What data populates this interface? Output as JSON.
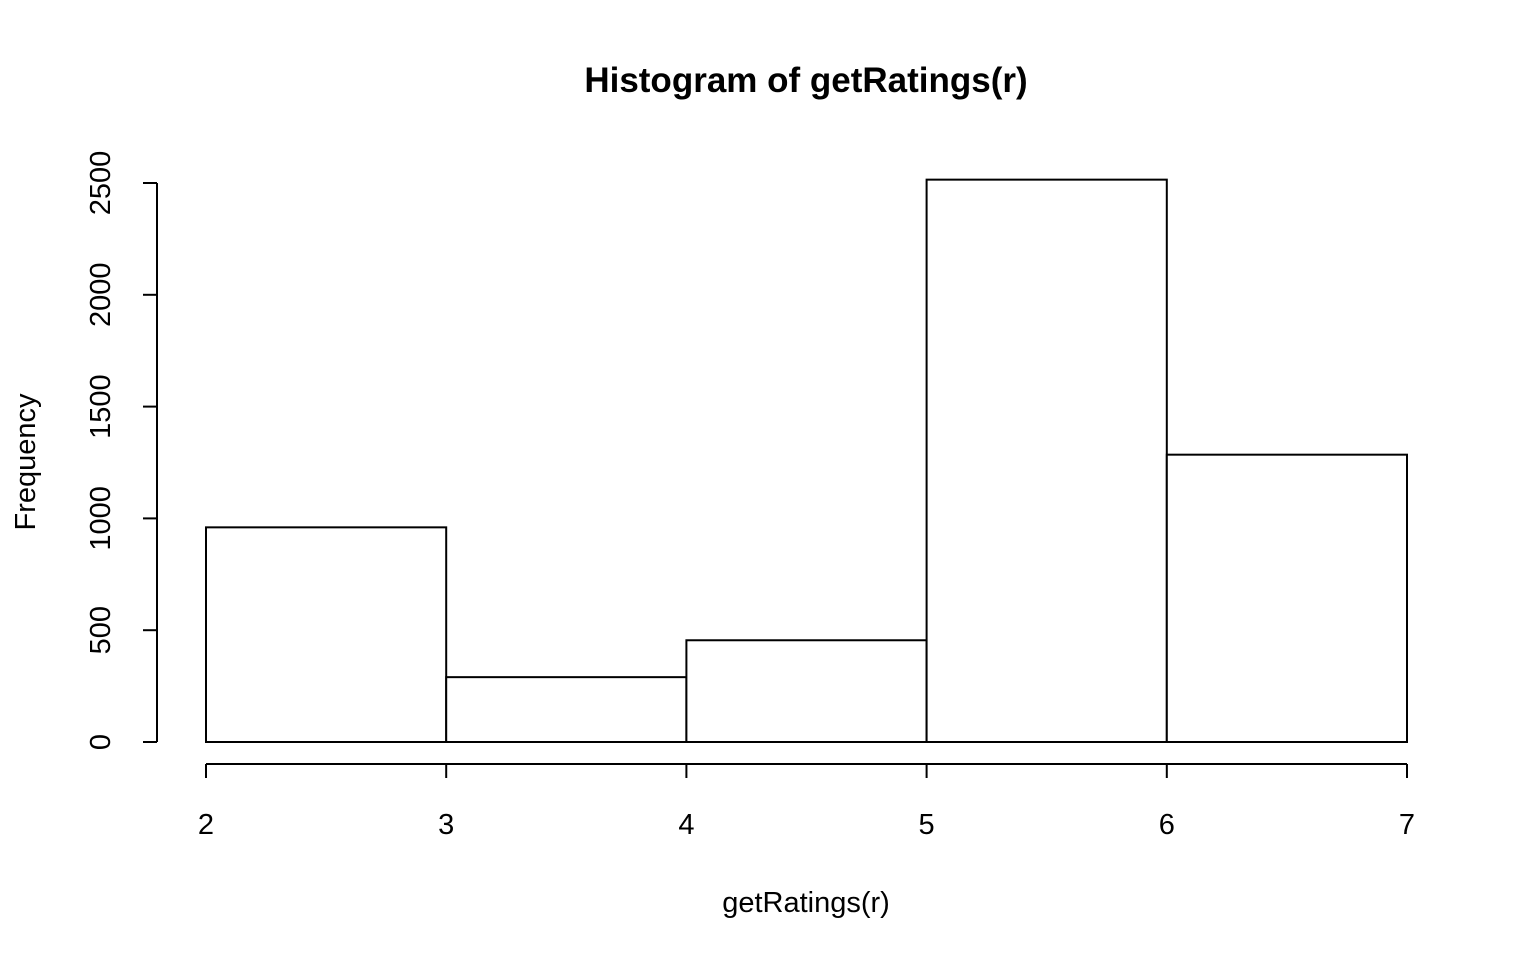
{
  "chart_data": {
    "type": "bar",
    "title": "Histogram of getRatings(r)",
    "xlabel": "getRatings(r)",
    "ylabel": "Frequency",
    "bin_edges": [
      2,
      3,
      4,
      5,
      6,
      7
    ],
    "values": [
      960,
      290,
      455,
      2515,
      1285
    ],
    "xlim": [
      2,
      7
    ],
    "ylim": [
      0,
      2500
    ],
    "x_ticks": [
      2,
      3,
      4,
      5,
      6,
      7
    ],
    "y_ticks": [
      0,
      500,
      1000,
      1500,
      2000,
      2500
    ],
    "x_tick_labels": [
      "2",
      "3",
      "4",
      "5",
      "6",
      "7"
    ],
    "y_tick_labels": [
      "0",
      "500",
      "1000",
      "1500",
      "2000",
      "2500"
    ],
    "grid": false,
    "bar_fill": "#ffffff",
    "bar_stroke": "#000000"
  }
}
